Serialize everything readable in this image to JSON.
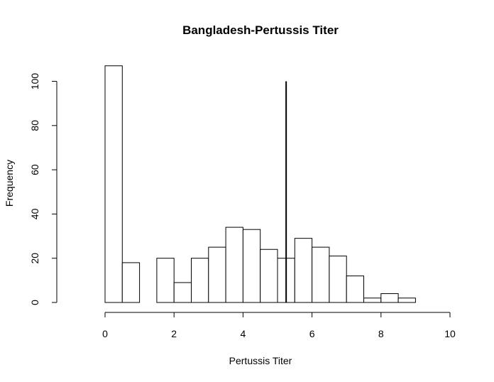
{
  "chart_data": {
    "type": "bar",
    "subtype": "histogram",
    "title": "Bangladesh-Pertussis Titer",
    "xlabel": "Pertussis Titer",
    "ylabel": "Frequency",
    "xlim": [
      0,
      10
    ],
    "ylim": [
      0,
      100
    ],
    "x_ticks": [
      "0",
      "2",
      "4",
      "6",
      "8",
      "10"
    ],
    "y_ticks": [
      "0",
      "20",
      "40",
      "60",
      "80",
      "100"
    ],
    "bins": [
      {
        "start": 0.0,
        "end": 0.5,
        "count": 107
      },
      {
        "start": 0.5,
        "end": 1.0,
        "count": 18
      },
      {
        "start": 1.0,
        "end": 1.5,
        "count": 0
      },
      {
        "start": 1.5,
        "end": 2.0,
        "count": 20
      },
      {
        "start": 2.0,
        "end": 2.5,
        "count": 9
      },
      {
        "start": 2.5,
        "end": 3.0,
        "count": 20
      },
      {
        "start": 3.0,
        "end": 3.5,
        "count": 25
      },
      {
        "start": 3.5,
        "end": 4.0,
        "count": 34
      },
      {
        "start": 4.0,
        "end": 4.5,
        "count": 33
      },
      {
        "start": 4.5,
        "end": 5.0,
        "count": 24
      },
      {
        "start": 5.0,
        "end": 5.5,
        "count": 20
      },
      {
        "start": 5.5,
        "end": 6.0,
        "count": 29
      },
      {
        "start": 6.0,
        "end": 6.5,
        "count": 25
      },
      {
        "start": 6.5,
        "end": 7.0,
        "count": 21
      },
      {
        "start": 7.0,
        "end": 7.5,
        "count": 12
      },
      {
        "start": 7.5,
        "end": 8.0,
        "count": 2
      },
      {
        "start": 8.0,
        "end": 8.5,
        "count": 4
      },
      {
        "start": 8.5,
        "end": 9.0,
        "count": 2
      }
    ],
    "reference_line": {
      "x": 5.25,
      "y_from": 0,
      "y_to": 100
    },
    "grid": false,
    "legend": "none"
  }
}
